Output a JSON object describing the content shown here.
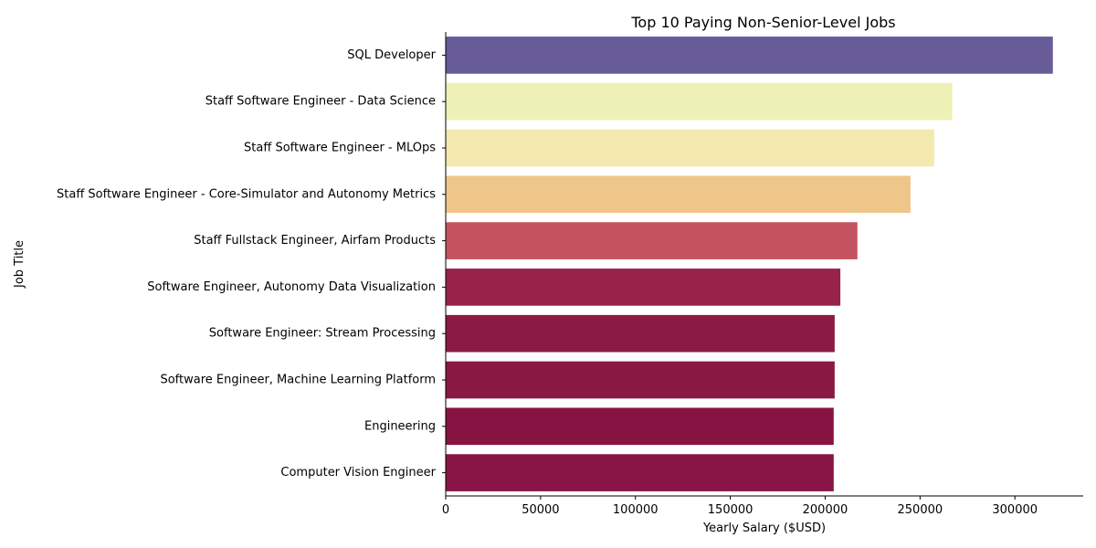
{
  "chart_data": {
    "type": "bar",
    "orientation": "horizontal",
    "title": "Top 10 Paying Non-Senior-Level Jobs",
    "xlabel": "Yearly Salary ($USD)",
    "ylabel": "Job Title",
    "xlim": [
      0,
      336000
    ],
    "xticks": [
      0,
      50000,
      100000,
      150000,
      200000,
      250000,
      300000
    ],
    "xtick_labels": [
      "0",
      "50000",
      "100000",
      "150000",
      "200000",
      "250000",
      "300000"
    ],
    "grid": false,
    "legend": "none",
    "categories": [
      "SQL Developer",
      "Staff Software Engineer - Data Science",
      "Staff Software Engineer - MLOps",
      "Staff Software Engineer - Core-Simulator and Autonomy Metrics",
      "Staff Fullstack Engineer, Airfam Products",
      "Software Engineer, Autonomy Data Visualization",
      "Software Engineer: Stream Processing",
      "Software Engineer, Machine Learning Platform",
      "Engineering",
      "Computer Vision Engineer"
    ],
    "values": [
      320000,
      267000,
      257500,
      245000,
      217000,
      208000,
      205000,
      205000,
      204500,
      204500
    ],
    "colors": [
      "#675c98",
      "#eef1b5",
      "#f4e9ae",
      "#efc689",
      "#c4545f",
      "#98234a",
      "#8b1a45",
      "#8a1944",
      "#871343",
      "#881545"
    ]
  }
}
